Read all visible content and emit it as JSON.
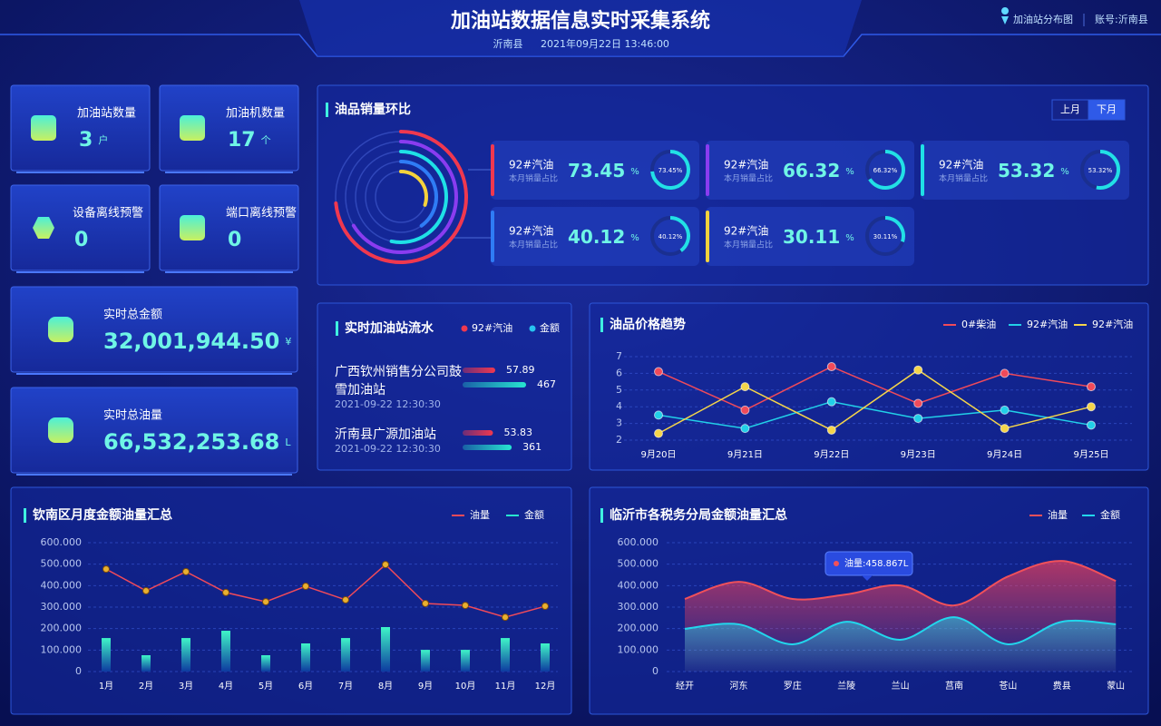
{
  "header": {
    "title": "加油站数据信息实时采集系统",
    "region": "沂南县",
    "datetime": "2021年09月22日 13:46:00",
    "map_link": "加油站分布图",
    "account": "账号:沂南县"
  },
  "stats": [
    {
      "label": "加油站数量",
      "value": "3",
      "unit": "户"
    },
    {
      "label": "加油机数量",
      "value": "17",
      "unit": "个"
    },
    {
      "label": "设备离线预警",
      "value": "0"
    },
    {
      "label": "端口离线预警",
      "value": "0"
    },
    {
      "label": "实时总金额",
      "value": "32,001,944.50",
      "unit": "¥"
    },
    {
      "label": "实时总油量",
      "value": "66,532,253.68",
      "unit": "L"
    }
  ],
  "oil_ratio": {
    "type": "ring",
    "title": "油品销量环比",
    "tabs": [
      "上月",
      "下月"
    ],
    "active_tab": 1,
    "items": [
      {
        "name": "92#汽油",
        "sub": "本月销量占比",
        "value": 73.45,
        "unit": "%",
        "ring_label": "73.45%",
        "color": "#f0384f"
      },
      {
        "name": "92#汽油",
        "sub": "本月销量占比",
        "value": 66.32,
        "unit": "%",
        "ring_label": "66.32%",
        "color": "#8a3cf0"
      },
      {
        "name": "92#汽油",
        "sub": "本月销量占比",
        "value": 53.32,
        "unit": "%",
        "ring_label": "53.32%",
        "color": "#1fe0e6"
      },
      {
        "name": "92#汽油",
        "sub": "本月销量占比",
        "value": 40.12,
        "unit": "%",
        "ring_label": "40.12%",
        "color": "#2f7cf5"
      },
      {
        "name": "92#汽油",
        "sub": "本月销量占比",
        "value": 30.11,
        "unit": "%",
        "ring_label": "30.11%",
        "color": "#f5d23c"
      }
    ]
  },
  "flow": {
    "title": "实时加油站流水",
    "legend": [
      {
        "name": "92#汽油",
        "color": "#f0384f"
      },
      {
        "name": "金额",
        "color": "#27c4f0"
      }
    ],
    "rows": [
      {
        "name": "广西钦州销售分公司鼓雪加油站",
        "time": "2021-09-22  12:30:30",
        "volume": 57.89,
        "amount": 467
      },
      {
        "name": "沂南县广源加油站",
        "time": "2021-09-22  12:30:30",
        "volume": 53.83,
        "amount": 361
      }
    ]
  },
  "price_trend": {
    "type": "line",
    "title": "油品价格趋势",
    "categories": [
      "9月20日",
      "9月21日",
      "9月22日",
      "9月23日",
      "9月24日",
      "9月25日"
    ],
    "series": [
      {
        "name": "0#柴油",
        "color": "#f04a5a",
        "values": [
          6.1,
          3.8,
          6.4,
          4.2,
          6.0,
          5.2
        ]
      },
      {
        "name": "92#汽油",
        "color": "#22d0e8",
        "values": [
          3.5,
          2.7,
          4.3,
          3.3,
          3.8,
          2.9
        ]
      },
      {
        "name": "92#汽油",
        "color": "#f5d54a",
        "values": [
          2.4,
          5.2,
          2.6,
          6.2,
          2.7,
          4.0
        ]
      }
    ],
    "ylim": [
      2,
      7
    ],
    "yticks": [
      2,
      3,
      4,
      5,
      6,
      7
    ],
    "grid": true
  },
  "monthly": {
    "type": "bar-line",
    "title": "钦南区月度金额油量汇总",
    "categories": [
      "1月",
      "2月",
      "3月",
      "4月",
      "5月",
      "6月",
      "7月",
      "8月",
      "9月",
      "10月",
      "11月",
      "12月"
    ],
    "series": [
      {
        "name": "油量",
        "color": "#f04a5a",
        "values": [
          477,
          376,
          465,
          368,
          325,
          397,
          334,
          498,
          317,
          308,
          253,
          304
        ]
      },
      {
        "name": "金额",
        "color": "#27e6d0",
        "values": [
          156,
          76,
          156,
          190,
          76,
          131,
          156,
          207,
          101,
          101,
          156,
          131
        ]
      }
    ],
    "ylim": [
      0,
      600
    ],
    "yticks": [
      0,
      {
        "value": 100,
        "label": "100.000"
      },
      {
        "value": 200,
        "label": "200.000"
      },
      {
        "value": 300,
        "label": "300.000"
      },
      {
        "value": 400,
        "label": "400.000"
      },
      {
        "value": 500,
        "label": "500.000"
      },
      {
        "value": 600,
        "label": "600.000"
      }
    ],
    "grid": true
  },
  "district": {
    "type": "area",
    "title": "临沂市各税务分局金额油量汇总",
    "categories": [
      "经开",
      "河东",
      "罗庄",
      "兰陵",
      "兰山",
      "莒南",
      "苍山",
      "费县",
      "蒙山"
    ],
    "series": [
      {
        "name": "油量",
        "color": "#f0505a",
        "values": [
          338,
          418,
          338,
          359,
          401,
          308,
          443,
          515,
          422
        ]
      },
      {
        "name": "金额",
        "color": "#22d6ec",
        "values": [
          199,
          220,
          127,
          232,
          148,
          253,
          127,
          232,
          220
        ]
      }
    ],
    "tooltip": "油量:458.867L",
    "ylim": [
      0,
      600
    ],
    "yticks": [
      0,
      {
        "value": 100,
        "label": "100.000"
      },
      {
        "value": 200,
        "label": "200.000"
      },
      {
        "value": 300,
        "label": "300.000"
      },
      {
        "value": 400,
        "label": "400.000"
      },
      {
        "value": 500,
        "label": "500.000"
      },
      {
        "value": 600,
        "label": "600.000"
      }
    ],
    "grid": true
  }
}
